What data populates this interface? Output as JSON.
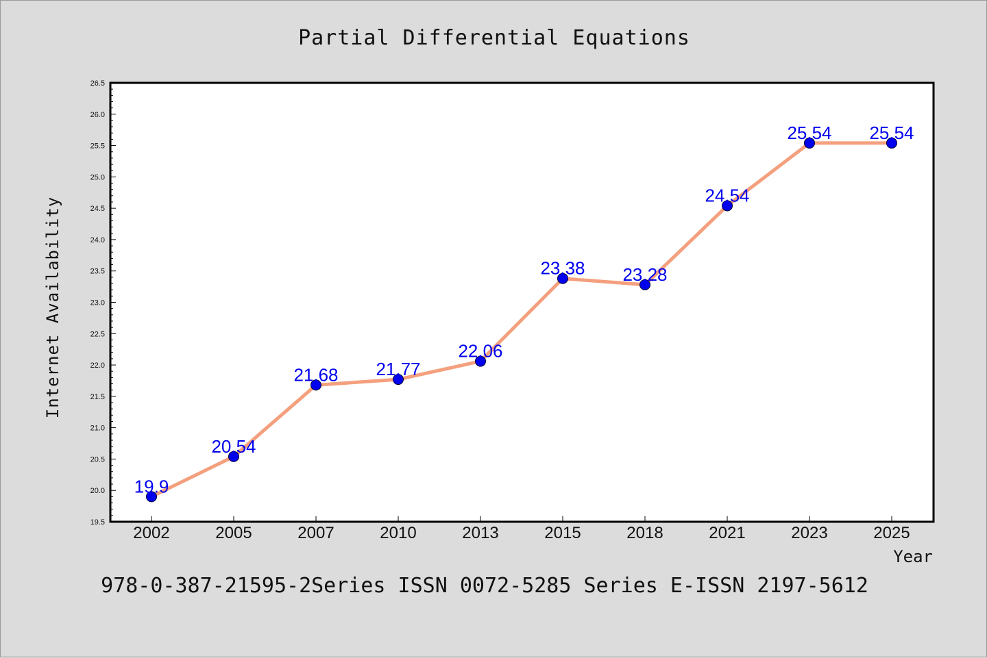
{
  "chart_data": {
    "type": "line",
    "title": "Partial Differential Equations",
    "xlabel": "Year",
    "ylabel": "Internet Availability",
    "categories": [
      "2002",
      "2005",
      "2007",
      "2010",
      "2013",
      "2015",
      "2018",
      "2021",
      "2023",
      "2025"
    ],
    "series": [
      {
        "values": [
          19.9,
          20.54,
          21.68,
          21.77,
          22.06,
          23.38,
          23.28,
          24.54,
          25.54,
          25.54
        ],
        "line_color": "#f4a07e",
        "marker_color": "#0000ee"
      }
    ],
    "data_labels": [
      "19.9",
      "20.54",
      "21.68",
      "21.77",
      "22.06",
      "23.38",
      "23.28",
      "24.54",
      "25.54",
      "25.54"
    ],
    "yticks": [
      "19.5",
      "20.0",
      "20.5",
      "21.0",
      "21.5",
      "22.0",
      "22.5",
      "23.0",
      "23.5",
      "24.0",
      "24.5",
      "25.0",
      "25.5",
      "26.0",
      "26.5"
    ],
    "ylim": [
      19.5,
      26.5
    ],
    "grid": false,
    "legend": "none"
  },
  "footer": "978-0-387-21595-2Series ISSN 0072-5285 Series E-ISSN 2197-5612",
  "colors": {
    "background": "#dcdcdc",
    "plot_background": "#ffffff",
    "line": "#f4a07e",
    "marker": "#0000ee",
    "data_label": "#0000ee"
  }
}
